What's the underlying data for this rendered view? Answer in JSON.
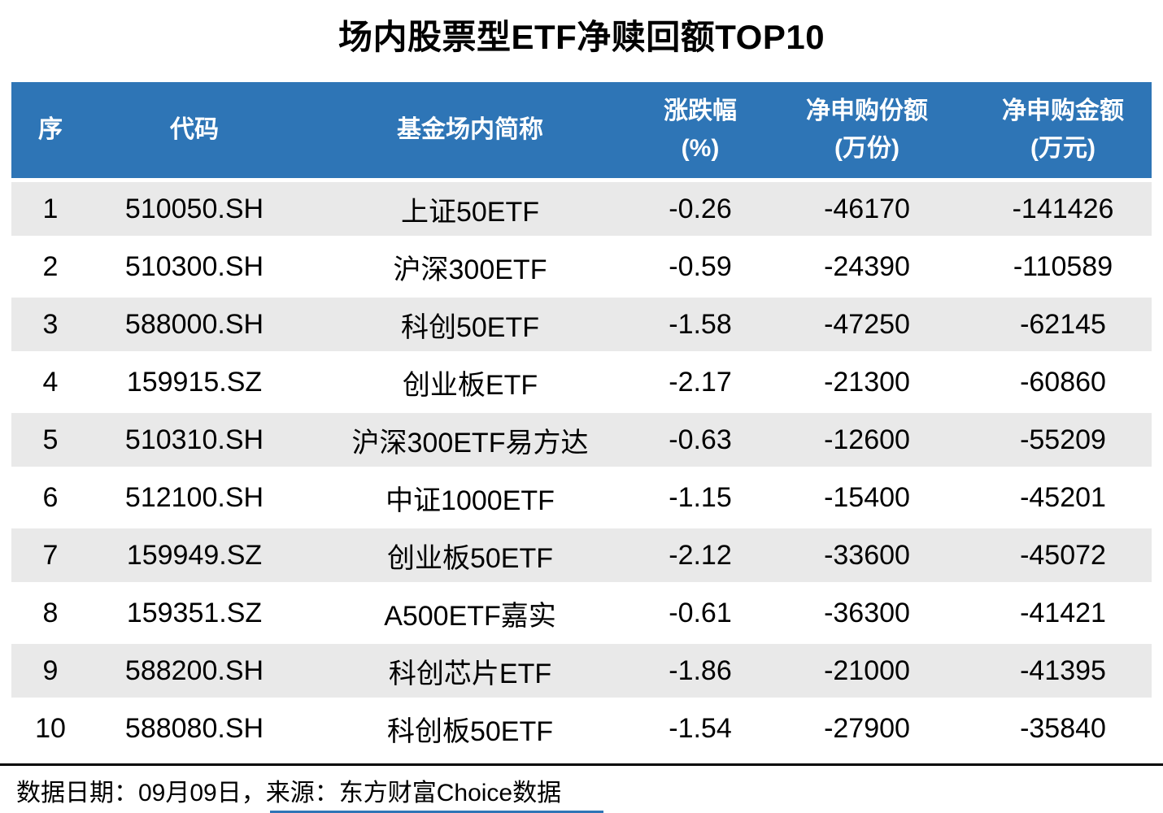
{
  "chart_data": {
    "type": "table",
    "title": "场内股票型ETF净赎回额TOP10",
    "columns": [
      {
        "key": "seq",
        "label": "序",
        "unit": ""
      },
      {
        "key": "code",
        "label": "代码",
        "unit": ""
      },
      {
        "key": "name",
        "label": "基金场内简称",
        "unit": ""
      },
      {
        "key": "change_pct",
        "label": "涨跌幅",
        "unit": "(%)"
      },
      {
        "key": "net_shares",
        "label": "净申购份额",
        "unit": "(万份)"
      },
      {
        "key": "net_amount",
        "label": "净申购金额",
        "unit": "(万元)"
      }
    ],
    "rows": [
      {
        "seq": "1",
        "code": "510050.SH",
        "name": "上证50ETF",
        "change_pct": "-0.26",
        "net_shares": "-46170",
        "net_amount": "-141426"
      },
      {
        "seq": "2",
        "code": "510300.SH",
        "name": "沪深300ETF",
        "change_pct": "-0.59",
        "net_shares": "-24390",
        "net_amount": "-110589"
      },
      {
        "seq": "3",
        "code": "588000.SH",
        "name": "科创50ETF",
        "change_pct": "-1.58",
        "net_shares": "-47250",
        "net_amount": "-62145"
      },
      {
        "seq": "4",
        "code": "159915.SZ",
        "name": "创业板ETF",
        "change_pct": "-2.17",
        "net_shares": "-21300",
        "net_amount": "-60860"
      },
      {
        "seq": "5",
        "code": "510310.SH",
        "name": "沪深300ETF易方达",
        "change_pct": "-0.63",
        "net_shares": "-12600",
        "net_amount": "-55209"
      },
      {
        "seq": "6",
        "code": "512100.SH",
        "name": "中证1000ETF",
        "change_pct": "-1.15",
        "net_shares": "-15400",
        "net_amount": "-45201"
      },
      {
        "seq": "7",
        "code": "159949.SZ",
        "name": "创业板50ETF",
        "change_pct": "-2.12",
        "net_shares": "-33600",
        "net_amount": "-45072"
      },
      {
        "seq": "8",
        "code": "159351.SZ",
        "name": "A500ETF嘉实",
        "change_pct": "-0.61",
        "net_shares": "-36300",
        "net_amount": "-41421"
      },
      {
        "seq": "9",
        "code": "588200.SH",
        "name": "科创芯片ETF",
        "change_pct": "-1.86",
        "net_shares": "-21000",
        "net_amount": "-41395"
      },
      {
        "seq": "10",
        "code": "588080.SH",
        "name": "科创板50ETF",
        "change_pct": "-1.54",
        "net_shares": "-27900",
        "net_amount": "-35840"
      }
    ],
    "layout": {
      "header_rows": 1,
      "zebra_striping": true,
      "first_data_row_shaded": true
    }
  },
  "footer": {
    "source_note": "数据日期：09月09日，来源：东方财富Choice数据"
  },
  "colors": {
    "header_bg": "#2E75B6",
    "header_text": "#FFFFFF",
    "row_alt_bg": "#E9E9E9",
    "row_bg": "#FFFFFF",
    "divider": "#000000",
    "accent_line": "#2E75B6",
    "text": "#000000"
  }
}
